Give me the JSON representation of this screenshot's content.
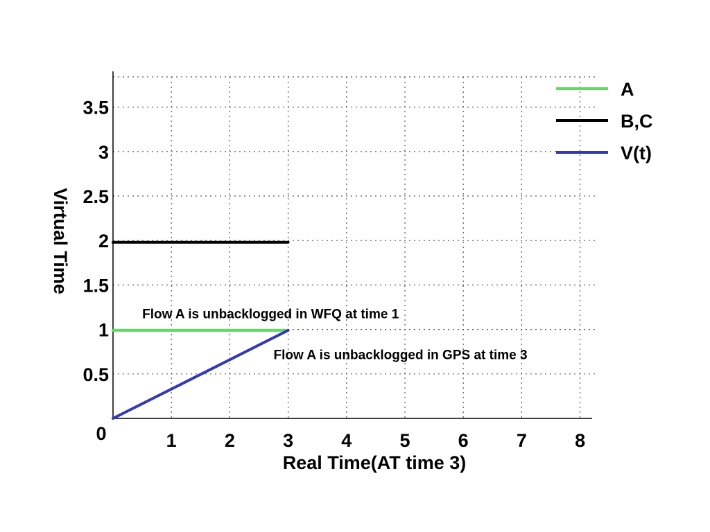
{
  "chart_data": {
    "type": "line",
    "xlabel": "Real Time(AT time 3)",
    "ylabel": "Virtual Time",
    "xlim": [
      0,
      8.2
    ],
    "ylim": [
      0,
      3.85
    ],
    "x_ticks": [
      1,
      2,
      3,
      4,
      5,
      6,
      7,
      8
    ],
    "y_ticks": [
      0.5,
      1,
      1.5,
      2,
      2.5,
      3,
      3.5
    ],
    "origin_label": "0",
    "grid": true,
    "legend_position": "top-right",
    "series": [
      {
        "name": "A",
        "color": "#5ddc5d",
        "points": [
          [
            0,
            0.99
          ],
          [
            3,
            0.99
          ]
        ]
      },
      {
        "name": "B,C",
        "color": "#000000",
        "points": [
          [
            0,
            1.98
          ],
          [
            3,
            1.98
          ]
        ]
      },
      {
        "name": "V(t)",
        "color": "#3438b8",
        "points": [
          [
            0,
            0
          ],
          [
            3,
            0.99
          ]
        ]
      }
    ],
    "annotations": [
      {
        "text": "Flow A is unbacklogged in WFQ at time 1",
        "x": 0.5,
        "y": 1.18
      },
      {
        "text": "Flow A is unbacklogged in GPS at time 3",
        "x": 2.75,
        "y": 0.72
      }
    ]
  }
}
